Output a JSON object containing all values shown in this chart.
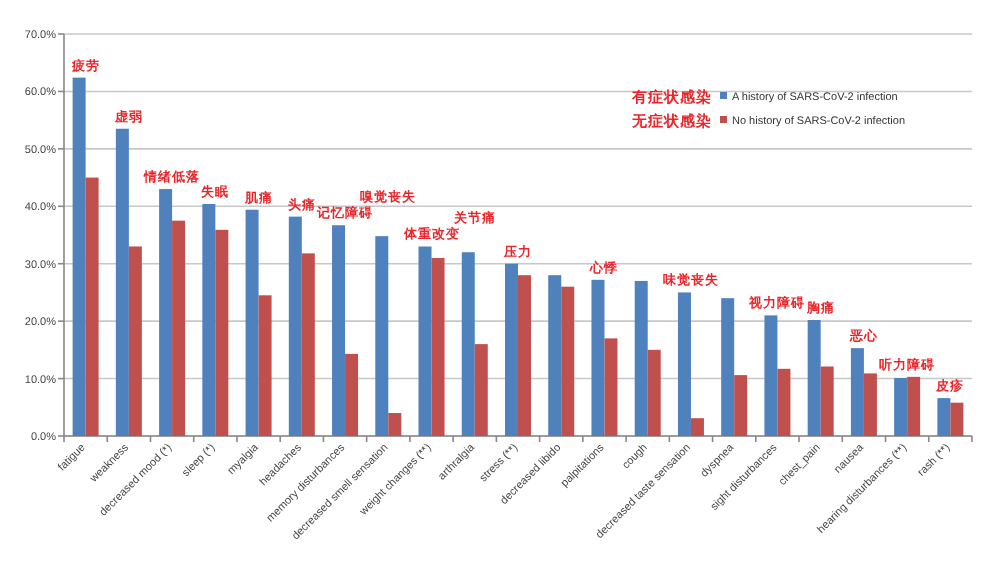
{
  "chart_data": {
    "type": "bar",
    "categories": [
      "fatigue",
      "weakness",
      "decreased mood (*)",
      "sleep (*)",
      "myalgia",
      "headaches",
      "memory disturbances",
      "decreased smell sensation",
      "weight changes (**)",
      "arthralgia",
      "stress (**)",
      "decreased libido",
      "palpitations",
      "cough",
      "decreased taste sensation",
      "dyspnea",
      "sight disturbances",
      "chest_pain",
      "nausea",
      "hearing disturbances (**)",
      "rash (**)"
    ],
    "series": [
      {
        "name": "A history of SARS-CoV-2 infection",
        "color": "#4f81bd",
        "values": [
          62.4,
          53.5,
          43,
          40.4,
          39.4,
          38.2,
          36.7,
          34.8,
          33,
          32,
          30,
          28,
          27.2,
          27,
          25,
          24,
          21,
          20.2,
          15.3,
          10.1,
          6.6
        ]
      },
      {
        "name": "No history of SARS-CoV-2 infection",
        "color": "#c0504d",
        "values": [
          45,
          33,
          37.5,
          35.9,
          24.5,
          31.8,
          14.3,
          4,
          31,
          16,
          28,
          26,
          17,
          15,
          3.1,
          10.6,
          11.7,
          12.1,
          10.9,
          10.3,
          5.8
        ]
      }
    ],
    "ylim": [
      0,
      70
    ],
    "yticks": [
      {
        "value": 0,
        "label": "0.0%"
      },
      {
        "value": 10,
        "label": "10.0%"
      },
      {
        "value": 20,
        "label": "20.0%"
      },
      {
        "value": 30,
        "label": "30.0%"
      },
      {
        "value": 40,
        "label": "40.0%"
      },
      {
        "value": 50,
        "label": "50.0%"
      },
      {
        "value": 60,
        "label": "60.0%"
      },
      {
        "value": 70,
        "label": "70.0%"
      }
    ],
    "grid": "y",
    "legend": "top right",
    "annotations": [
      {
        "text": "疲劳",
        "x": "fatigue",
        "y": 62.4
      },
      {
        "text": "虚弱",
        "x": "weakness",
        "y": 53.5
      },
      {
        "text": "情绪低落",
        "x": "decreased mood (*)",
        "y": 43
      },
      {
        "text": "失眠",
        "x": "sleep (*)",
        "y": 40.4
      },
      {
        "text": "肌痛",
        "x": "myalgia",
        "y": 39.4
      },
      {
        "text": "头痛",
        "x": "headaches",
        "y": 38.2
      },
      {
        "text": "记忆障碍",
        "x": "memory disturbances",
        "y": 36.7
      },
      {
        "text": "嗅觉丧失",
        "x": "decreased smell sensation",
        "y": 34.8
      },
      {
        "text": "体重改变",
        "x": "weight changes (**)",
        "y": 33
      },
      {
        "text": "关节痛",
        "x": "arthralgia",
        "y": 32
      },
      {
        "text": "压力",
        "x": "stress (**)",
        "y": 30
      },
      {
        "text": "心悸",
        "x": "palpitations",
        "y": 27.2
      },
      {
        "text": "味觉丧失",
        "x": "decreased taste sensation",
        "y": 25
      },
      {
        "text": "视力障碍",
        "x": "sight disturbances",
        "y": 21
      },
      {
        "text": "胸痛",
        "x": "chest_pain",
        "y": 20.2
      },
      {
        "text": "恶心",
        "x": "nausea",
        "y": 15.3
      },
      {
        "text": "听力障碍",
        "x": "hearing disturbances (**)",
        "y": 10.1
      },
      {
        "text": "皮疹",
        "x": "rash (**)",
        "y": 6.6
      },
      "有症状感染",
      "无症状感染"
    ]
  }
}
